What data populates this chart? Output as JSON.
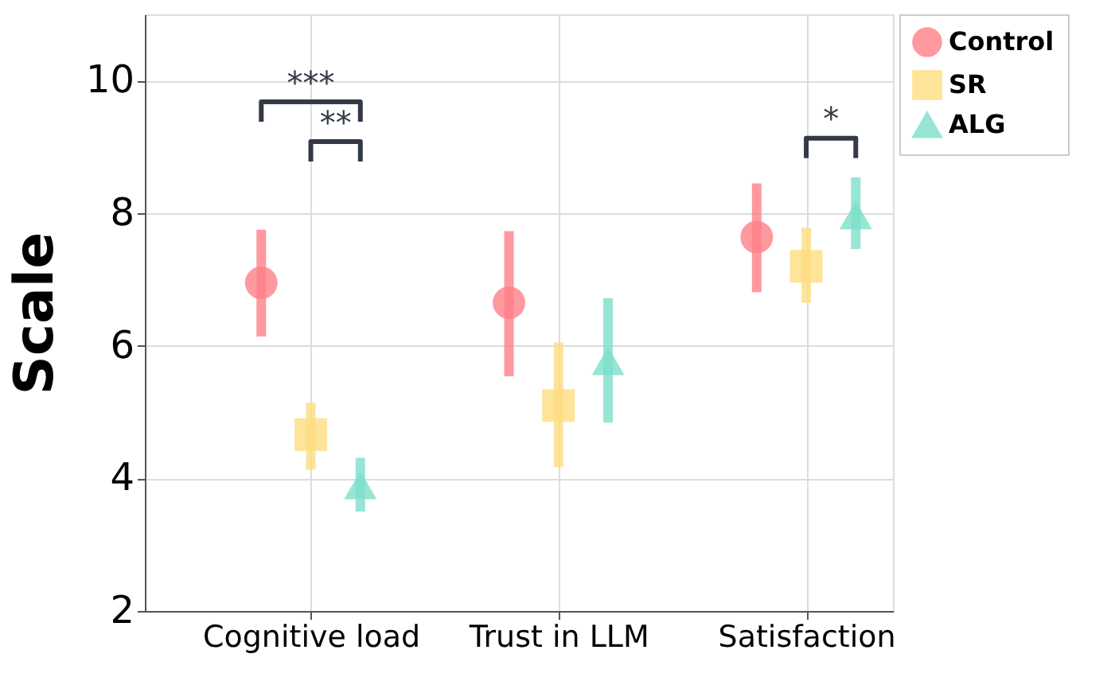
{
  "chart_data": {
    "type": "scatter",
    "ylabel": "Scale",
    "categories": [
      "Cognitive load",
      "Trust in LLM",
      "Satisfaction"
    ],
    "series": [
      {
        "name": "Control",
        "color": "#ff8088",
        "marker": "circle",
        "values": [
          6.95,
          6.65,
          7.64
        ],
        "errors": [
          [
            6.14,
            7.75
          ],
          [
            5.54,
            7.73
          ],
          [
            6.81,
            8.45
          ]
        ]
      },
      {
        "name": "SR",
        "color": "#fedd7f",
        "marker": "square",
        "values": [
          4.66,
          5.1,
          7.2
        ],
        "errors": [
          [
            4.13,
            5.14
          ],
          [
            4.17,
            6.05
          ],
          [
            6.65,
            7.78
          ]
        ]
      },
      {
        "name": "ALG",
        "color": "#7ddfca",
        "marker": "triangle",
        "values": [
          3.9,
          5.77,
          7.97
        ],
        "errors": [
          [
            3.5,
            4.31
          ],
          [
            4.84,
            6.72
          ],
          [
            7.46,
            8.54
          ]
        ]
      }
    ],
    "ylim": [
      2,
      11
    ],
    "yticks": [
      2,
      4,
      6,
      8,
      10
    ],
    "grid": true,
    "legend": "top right",
    "annotations": [
      "***",
      "**",
      "*"
    ]
  }
}
